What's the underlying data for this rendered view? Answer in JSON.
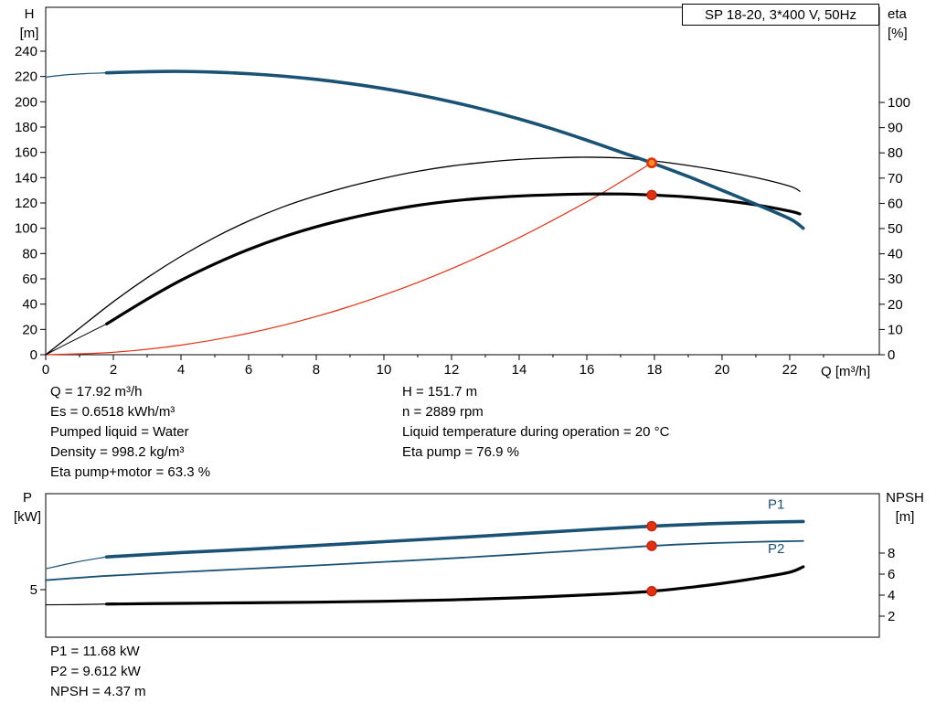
{
  "info": {
    "left": [
      "Q = 17.92 m³/h",
      "Es = 0.6518 kWh/m³",
      "Pumped liquid = Water",
      "Density = 998.2 kg/m³",
      "Eta pump+motor = 63.3 %"
    ],
    "right": [
      "H = 151.7 m",
      "n = 2889 rpm",
      "Liquid temperature during operation = 20 °C",
      "Eta pump = 76.9 %"
    ],
    "bottom": [
      "P1 = 11.68 kW",
      "P2 = 9.612 kW",
      "NPSH = 4.37 m"
    ]
  },
  "colors": {
    "curve_blue": "#1a5276",
    "curve_black": "#000000",
    "curve_red": "#e23112",
    "marker_red": "#e23112",
    "marker_orange": "#ff9020"
  },
  "chart_data": [
    {
      "type": "line",
      "title": "SP 18-20, 3*400 V, 50Hz",
      "xlabel": "Q [m³/h]",
      "x_range": [
        0,
        24.65
      ],
      "x_ticks": [
        0,
        2,
        4,
        6,
        8,
        10,
        12,
        14,
        16,
        18,
        20,
        22
      ],
      "x_minor": [
        1,
        3,
        5,
        7,
        9,
        11,
        13,
        15,
        17,
        19,
        21,
        23
      ],
      "left_axis": {
        "label": [
          "H",
          "[m]"
        ],
        "range": [
          0,
          274.7
        ],
        "ticks": [
          0,
          20,
          40,
          60,
          80,
          100,
          120,
          140,
          160,
          180,
          200,
          220,
          240
        ]
      },
      "right_axis": {
        "label": [
          "eta",
          "[%]"
        ],
        "range": [
          0,
          137.7
        ],
        "ticks": [
          0,
          10,
          20,
          30,
          40,
          50,
          60,
          70,
          80,
          90,
          100
        ]
      },
      "series": [
        {
          "name": "system-curve",
          "axis": "left",
          "color": "#e23112",
          "width": 1.2,
          "points": [
            [
              0,
              0
            ],
            [
              2,
              1.9
            ],
            [
              4,
              7.6
            ],
            [
              6,
              17
            ],
            [
              8,
              30.2
            ],
            [
              10,
              47.2
            ],
            [
              12,
              68
            ],
            [
              14,
              92.6
            ],
            [
              16,
              120.9
            ],
            [
              17,
              136.6
            ],
            [
              17.92,
              151.7
            ]
          ]
        },
        {
          "name": "eta-pump",
          "axis": "right",
          "color": "#000000",
          "width": 1.3,
          "points": [
            [
              0,
              0
            ],
            [
              1,
              10.5
            ],
            [
              2,
              21
            ],
            [
              3,
              30.5
            ],
            [
              4,
              39
            ],
            [
              5,
              46.5
            ],
            [
              6,
              53
            ],
            [
              7,
              58.5
            ],
            [
              8,
              63
            ],
            [
              9,
              66.8
            ],
            [
              10,
              70
            ],
            [
              11,
              72.7
            ],
            [
              12,
              74.8
            ],
            [
              13,
              76.3
            ],
            [
              14,
              77.4
            ],
            [
              15,
              78
            ],
            [
              16,
              78.3
            ],
            [
              17,
              78
            ],
            [
              17.92,
              76.9
            ],
            [
              19,
              75
            ],
            [
              20,
              72.8
            ],
            [
              21,
              70.2
            ],
            [
              22,
              66.8
            ],
            [
              22.3,
              64.8
            ]
          ]
        },
        {
          "name": "eta-pump-motor-min-flow",
          "axis": "right",
          "color": "#000000",
          "width": 1,
          "points": [
            [
              0,
              0
            ],
            [
              0.9,
              6.2
            ],
            [
              1.8,
              12.2
            ]
          ]
        },
        {
          "name": "eta-pump-motor",
          "axis": "right",
          "color": "#000000",
          "width": 3.2,
          "points": [
            [
              1.8,
              12.2
            ],
            [
              3,
              22
            ],
            [
              4,
              29.5
            ],
            [
              5,
              36
            ],
            [
              6,
              41.7
            ],
            [
              7,
              46.6
            ],
            [
              8,
              50.7
            ],
            [
              9,
              54.1
            ],
            [
              10,
              56.9
            ],
            [
              11,
              59.2
            ],
            [
              12,
              60.9
            ],
            [
              13,
              62.1
            ],
            [
              14,
              62.9
            ],
            [
              15,
              63.4
            ],
            [
              16,
              63.7
            ],
            [
              17,
              63.7
            ],
            [
              17.92,
              63.3
            ],
            [
              19,
              62.5
            ],
            [
              20,
              61.2
            ],
            [
              21,
              59.4
            ],
            [
              22,
              56.9
            ],
            [
              22.3,
              55.8
            ]
          ]
        },
        {
          "name": "hq-min-flow",
          "axis": "left",
          "color": "#1a5276",
          "width": 1.2,
          "points": [
            [
              0,
              219.5
            ],
            [
              0.6,
              221.3
            ],
            [
              1.2,
              222.3
            ],
            [
              1.8,
              222.9
            ]
          ]
        },
        {
          "name": "hq",
          "axis": "left",
          "color": "#1a5276",
          "width": 3.6,
          "points": [
            [
              1.8,
              222.9
            ],
            [
              3,
              223.8
            ],
            [
              4,
              224
            ],
            [
              5,
              223.4
            ],
            [
              6,
              222.2
            ],
            [
              7,
              220.3
            ],
            [
              8,
              217.7
            ],
            [
              9,
              214.4
            ],
            [
              10,
              210.4
            ],
            [
              11,
              205.6
            ],
            [
              12,
              200
            ],
            [
              13,
              193.6
            ],
            [
              14,
              186.4
            ],
            [
              15,
              178.4
            ],
            [
              16,
              169.6
            ],
            [
              17,
              160.3
            ],
            [
              17.92,
              151.7
            ],
            [
              19,
              140.9
            ],
            [
              20,
              130
            ],
            [
              21,
              119
            ],
            [
              22,
              107.5
            ],
            [
              22.4,
              100
            ]
          ]
        }
      ],
      "markers": [
        {
          "x": 17.92,
          "v": 151.7,
          "axis": "left",
          "fill": "#ff9020",
          "stroke": "#e23112",
          "sw": 2.6,
          "r": 4.6
        },
        {
          "x": 17.92,
          "v": 63.3,
          "axis": "right",
          "fill": "#e23112",
          "stroke": "#c22508",
          "sw": 1.4,
          "r": 5
        }
      ],
      "labels": []
    },
    {
      "type": "line",
      "title": "",
      "xlabel": "",
      "x_range": [
        0,
        24.65
      ],
      "x_ticks": [],
      "x_minor": [],
      "left_axis": {
        "label": [
          "P",
          "[kW]"
        ],
        "range": [
          0,
          15.1
        ],
        "ticks": [
          5
        ]
      },
      "right_axis": {
        "label": [
          "NPSH",
          "[m]"
        ],
        "range": [
          0,
          13.65
        ],
        "ticks": [
          2,
          4,
          6,
          8
        ]
      },
      "series": [
        {
          "name": "p1-min-flow",
          "axis": "left",
          "color": "#1a5276",
          "width": 1.2,
          "points": [
            [
              0,
              7.2
            ],
            [
              0.9,
              7.9
            ],
            [
              1.8,
              8.45
            ]
          ]
        },
        {
          "name": "p1",
          "axis": "left",
          "color": "#1a5276",
          "width": 3.6,
          "points": [
            [
              1.8,
              8.45
            ],
            [
              4,
              8.9
            ],
            [
              6,
              9.25
            ],
            [
              8,
              9.65
            ],
            [
              10,
              10.05
            ],
            [
              12,
              10.45
            ],
            [
              14,
              10.87
            ],
            [
              16,
              11.3
            ],
            [
              17.92,
              11.68
            ],
            [
              19,
              11.85
            ],
            [
              20,
              11.98
            ],
            [
              21,
              12.08
            ],
            [
              22,
              12.15
            ],
            [
              22.4,
              12.17
            ]
          ]
        },
        {
          "name": "p2",
          "axis": "left",
          "color": "#1a5276",
          "width": 1.8,
          "points": [
            [
              0,
              6.0
            ],
            [
              1.8,
              6.45
            ],
            [
              4,
              6.85
            ],
            [
              6,
              7.2
            ],
            [
              8,
              7.55
            ],
            [
              10,
              7.92
            ],
            [
              12,
              8.3
            ],
            [
              14,
              8.72
            ],
            [
              16,
              9.17
            ],
            [
              17.92,
              9.61
            ],
            [
              19,
              9.8
            ],
            [
              20,
              9.93
            ],
            [
              21,
              10.03
            ],
            [
              22,
              10.1
            ],
            [
              22.4,
              10.12
            ]
          ]
        },
        {
          "name": "npsh-min-flow",
          "axis": "right",
          "color": "#000000",
          "width": 1.2,
          "points": [
            [
              0,
              3.08
            ],
            [
              0.9,
              3.1
            ],
            [
              1.8,
              3.15
            ]
          ]
        },
        {
          "name": "npsh",
          "axis": "right",
          "color": "#000000",
          "width": 3.2,
          "points": [
            [
              1.8,
              3.15
            ],
            [
              4,
              3.22
            ],
            [
              6,
              3.27
            ],
            [
              8,
              3.33
            ],
            [
              10,
              3.42
            ],
            [
              12,
              3.55
            ],
            [
              14,
              3.75
            ],
            [
              16,
              4.02
            ],
            [
              17,
              4.18
            ],
            [
              17.92,
              4.37
            ],
            [
              19,
              4.72
            ],
            [
              20,
              5.12
            ],
            [
              21,
              5.6
            ],
            [
              22,
              6.18
            ],
            [
              22.4,
              6.7
            ]
          ]
        }
      ],
      "markers": [
        {
          "x": 17.92,
          "v": 11.68,
          "axis": "left",
          "fill": "#e23112",
          "stroke": "#c22508",
          "sw": 1.4,
          "r": 5
        },
        {
          "x": 17.92,
          "v": 9.61,
          "axis": "left",
          "fill": "#e23112",
          "stroke": "#c22508",
          "sw": 1.4,
          "r": 5
        },
        {
          "x": 17.92,
          "v": 4.37,
          "axis": "right",
          "fill": "#e23112",
          "stroke": "#c22508",
          "sw": 1.4,
          "r": 5
        }
      ],
      "labels": [
        {
          "text": "P1",
          "x": 21.6,
          "y": 13.5,
          "axis": "left",
          "color": "#1a5276"
        },
        {
          "text": "P2",
          "x": 21.6,
          "y": 8.85,
          "axis": "left",
          "color": "#1a5276"
        }
      ]
    }
  ]
}
